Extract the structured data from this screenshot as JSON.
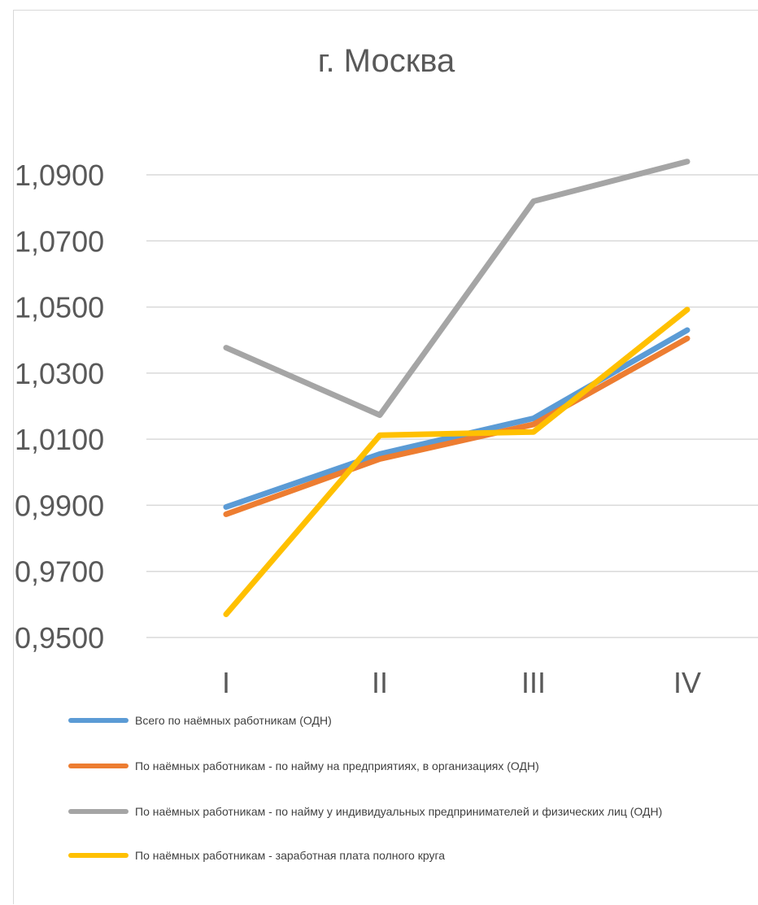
{
  "chart_data": {
    "type": "line",
    "title": "г. Москва",
    "xlabel": "",
    "ylabel": "",
    "categories": [
      "I",
      "II",
      "III",
      "IV"
    ],
    "ylim": [
      0.95,
      1.1
    ],
    "yticks": [
      "0,9500",
      "0,9700",
      "0,9900",
      "1,0100",
      "1,0300",
      "1,0500",
      "1,0700",
      "1,0900"
    ],
    "grid": true,
    "legend_position": "bottom",
    "series": [
      {
        "name": "Всего по наёмных работникам (ОДН)",
        "color": "#5b9bd5",
        "values": [
          0.9895,
          1.0055,
          1.0163,
          1.043
        ]
      },
      {
        "name": "По наёмных работникам - по найму на предприятиях, в организациях (ОДН)",
        "color": "#ed7d31",
        "values": [
          0.9873,
          1.004,
          1.0145,
          1.0405
        ]
      },
      {
        "name": "По наёмных работникам - по найму у индивидуальных предпринимателей и физических лиц (ОДН)",
        "color": "#a5a5a5",
        "values": [
          1.0377,
          1.0173,
          1.082,
          1.094
        ]
      },
      {
        "name": "По наёмных работникам - заработная плата полного круга",
        "color": "#ffc000",
        "values": [
          0.957,
          1.0112,
          1.0122,
          1.0492
        ]
      }
    ]
  }
}
